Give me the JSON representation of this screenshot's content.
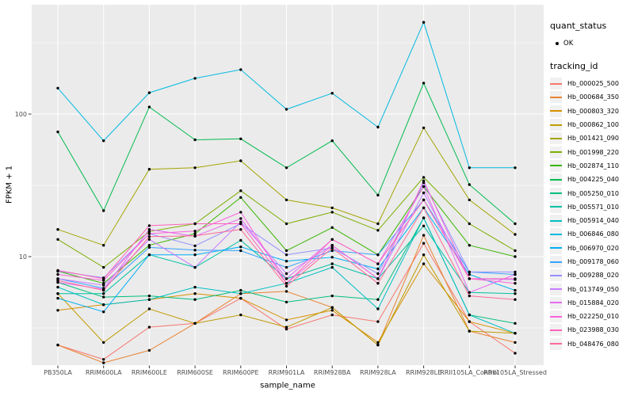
{
  "chart_data": {
    "type": "line",
    "title": "",
    "xlabel": "sample_name",
    "ylabel": "FPKM + 1",
    "y_scale": "log10",
    "y_ticks": [
      10,
      100
    ],
    "y_tick_labels": [
      "10",
      "100"
    ],
    "y_minor_gridlines": [
      3.162,
      31.62,
      316.2
    ],
    "ylim": [
      1.7,
      600
    ],
    "grid": true,
    "marker": "point",
    "categories": [
      "PB350LA",
      "RRIM600LA",
      "RRIM600LE",
      "RRIM600SE",
      "RRIM600PE",
      "RRIM901LA",
      "RRIM928BA",
      "RRIM928LA",
      "RRIM928LE",
      "RRII105LA_Control",
      "RRII105LA_Stressed"
    ],
    "legend": {
      "position": "right",
      "quant_status": {
        "title": "quant_status",
        "items": [
          {
            "label": "OK",
            "marker": "point",
            "color": "#000000"
          }
        ]
      },
      "tracking_id": {
        "title": "tracking_id"
      }
    },
    "theme": {
      "panel_bg": "#EBEBEB",
      "grid_color": "#FFFFFF",
      "tick_label_color": "#4D4D4D",
      "axis_title_color": "#000000",
      "point_color": "#000000",
      "legend_key_bg": "#F0F0F0"
    },
    "series": [
      {
        "name": "Hb_000025_500",
        "color": "#F8766D",
        "values": [
          2.4,
          1.9,
          3.2,
          3.4,
          5.1,
          3.1,
          3.9,
          3.5,
          12.4,
          3.5,
          2.1
        ]
      },
      {
        "name": "Hb_000684_350",
        "color": "#EA8331",
        "values": [
          2.4,
          1.8,
          2.2,
          3.4,
          5.5,
          5.7,
          4.4,
          2.4,
          14.1,
          3.0,
          2.5
        ]
      },
      {
        "name": "Hb_000803_320",
        "color": "#D89000",
        "values": [
          4.2,
          4.6,
          5.0,
          5.5,
          5.1,
          3.6,
          4.2,
          2.5,
          8.9,
          3.5,
          2.9
        ]
      },
      {
        "name": "Hb_000862_100",
        "color": "#C09B00",
        "values": [
          5.5,
          2.5,
          4.3,
          3.4,
          3.9,
          3.2,
          4.4,
          2.4,
          10.3,
          3.0,
          2.9
        ]
      },
      {
        "name": "Hb_001421_090",
        "color": "#A3A500",
        "values": [
          15.5,
          12.0,
          41,
          42,
          47,
          25,
          22,
          17,
          80,
          25,
          14.3
        ]
      },
      {
        "name": "Hb_001998_220",
        "color": "#7CAE00",
        "values": [
          13.2,
          8.4,
          15.0,
          17.0,
          29,
          17,
          20.5,
          15.3,
          36,
          17,
          11
        ]
      },
      {
        "name": "Hb_002874_110",
        "color": "#39B600",
        "values": [
          7.9,
          6.5,
          12.0,
          14.5,
          26,
          11,
          16,
          10.3,
          31,
          12,
          10
        ]
      },
      {
        "name": "Hb_004225_040",
        "color": "#00BB4E",
        "values": [
          75,
          21,
          112,
          66,
          67,
          42,
          65,
          27,
          165,
          32,
          17
        ]
      },
      {
        "name": "Hb_005250_010",
        "color": "#00BF7D",
        "values": [
          6.6,
          5.2,
          5.3,
          5.0,
          5.8,
          4.8,
          5.3,
          5.0,
          18.7,
          3.9,
          3.4
        ]
      },
      {
        "name": "Hb_005571_010",
        "color": "#00C1A3",
        "values": [
          5.5,
          5.5,
          10.3,
          8.4,
          13,
          7.0,
          8.9,
          7.0,
          16.4,
          5.6,
          5.5
        ]
      },
      {
        "name": "Hb_005914_040",
        "color": "#00BFC4",
        "values": [
          6.1,
          4.6,
          5.0,
          6.1,
          5.5,
          6.5,
          8.4,
          4.3,
          18.7,
          3.9,
          2.9
        ]
      },
      {
        "name": "Hb_006846_080",
        "color": "#00BAE0",
        "values": [
          152,
          65,
          141,
          178,
          205,
          108,
          140,
          81,
          440,
          42,
          42
        ]
      },
      {
        "name": "Hb_006970_020",
        "color": "#00B0F6",
        "values": [
          5.1,
          4.1,
          10.3,
          10.3,
          11.7,
          9.3,
          9.9,
          8.2,
          22,
          7.5,
          5.8
        ]
      },
      {
        "name": "Hb_009178_060",
        "color": "#35A2FF",
        "values": [
          7.0,
          6.0,
          11.6,
          11.1,
          11.0,
          8.4,
          11.0,
          10.3,
          25,
          7.8,
          7.5
        ]
      },
      {
        "name": "Hb_009288_020",
        "color": "#9590FF",
        "values": [
          7.9,
          7.1,
          14.5,
          11.9,
          17.0,
          10.3,
          11.5,
          7.6,
          33,
          7.8,
          7.8
        ]
      },
      {
        "name": "Hb_013749_050",
        "color": "#C77CFF",
        "values": [
          7.0,
          6.3,
          13.2,
          8.4,
          17.5,
          7.6,
          12.0,
          7.0,
          28,
          7.0,
          6.9
        ]
      },
      {
        "name": "Hb_015884_020",
        "color": "#E76BF3",
        "values": [
          6.6,
          5.9,
          15.5,
          13.9,
          18.5,
          7.0,
          13.2,
          8.9,
          31,
          5.6,
          7.5
        ]
      },
      {
        "name": "Hb_022250_010",
        "color": "#FA62DB",
        "values": [
          7.5,
          6.8,
          14.5,
          15.1,
          20.5,
          6.5,
          12.0,
          7.0,
          34,
          7.0,
          6.5
        ]
      },
      {
        "name": "Hb_023988_030",
        "color": "#FF62BC",
        "values": [
          8.0,
          7.0,
          16.5,
          17.0,
          17.0,
          6.5,
          13.2,
          8.9,
          25,
          7.0,
          7.0
        ]
      },
      {
        "name": "Hb_048476_080",
        "color": "#FF6A98",
        "values": [
          6.8,
          5.8,
          13.8,
          14.0,
          15.5,
          6.2,
          11.5,
          6.5,
          22,
          5.3,
          5.0
        ]
      }
    ]
  }
}
